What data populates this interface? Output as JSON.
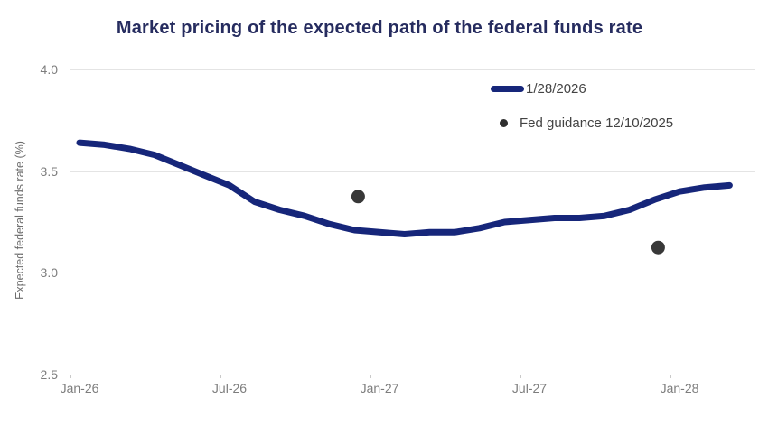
{
  "chart": {
    "title": "Market pricing of the expected path of the federal funds rate",
    "ylabel": "Expected federal funds rate (%)",
    "legend": {
      "line_label": "1/28/2026",
      "dot_label": "Fed guidance 12/10/2025"
    },
    "colors": {
      "line": "#16267a",
      "dot": "#383838",
      "title": "#262c5f",
      "tick_text": "#7d7d7d",
      "gridline": "#e4e4e4"
    }
  },
  "chart_data": {
    "type": "line",
    "title": "Market pricing of the expected path of the federal funds rate",
    "xlabel": "",
    "ylabel": "Expected federal funds rate (%)",
    "ylim": [
      2.5,
      4.0
    ],
    "ytick_labels": [
      "4.0",
      "3.5",
      "3.0",
      "2.5"
    ],
    "ytick_values": [
      4.0,
      3.5,
      3.0,
      2.5
    ],
    "xtick_labels": [
      "Jan-26",
      "Jul-26",
      "Jan-27",
      "Jul-27",
      "Jan-28"
    ],
    "x": [
      "Jan-26",
      "Feb-26",
      "Mar-26",
      "Apr-26",
      "May-26",
      "Jun-26",
      "Jul-26",
      "Aug-26",
      "Sep-26",
      "Oct-26",
      "Nov-26",
      "Dec-26",
      "Jan-27",
      "Feb-27",
      "Mar-27",
      "Apr-27",
      "May-27",
      "Jun-27",
      "Jul-27",
      "Aug-27",
      "Sep-27",
      "Oct-27",
      "Nov-27",
      "Dec-27",
      "Jan-28",
      "Feb-28",
      "Mar-28"
    ],
    "series": [
      {
        "name": "1/28/2026",
        "type": "line",
        "values": [
          3.64,
          3.63,
          3.61,
          3.58,
          3.53,
          3.48,
          3.43,
          3.35,
          3.31,
          3.28,
          3.24,
          3.21,
          3.2,
          3.19,
          3.2,
          3.2,
          3.22,
          3.25,
          3.26,
          3.27,
          3.27,
          3.28,
          3.31,
          3.36,
          3.4,
          3.42,
          3.43
        ]
      },
      {
        "name": "Fed guidance 12/10/2025",
        "type": "scatter",
        "points": [
          {
            "month": "Dec-26",
            "value": 3.375
          },
          {
            "month": "Dec-27",
            "value": 3.125
          }
        ]
      }
    ],
    "legend_position": "upper right",
    "grid": "horizontal"
  }
}
